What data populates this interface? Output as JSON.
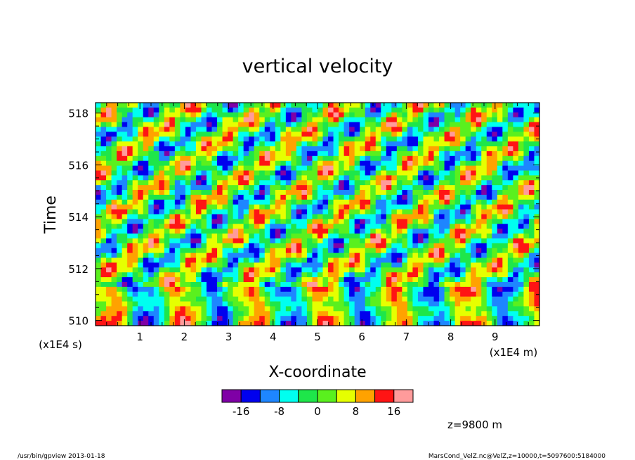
{
  "chart_data": {
    "type": "heatmap",
    "title": "vertical velocity",
    "xlabel": "X-coordinate",
    "ylabel": "Time",
    "x_unit": "(x1E4 m)",
    "y_unit": "(x1E4 s)",
    "xlim": [
      0,
      10
    ],
    "ylim": [
      509.8,
      518.4
    ],
    "x_ticks": [
      "1",
      "2",
      "3",
      "4",
      "5",
      "6",
      "7",
      "8",
      "9"
    ],
    "y_ticks": [
      "510",
      "512",
      "514",
      "516",
      "518"
    ],
    "colorbar": {
      "levels": [
        -20,
        -16,
        -12,
        -8,
        -4,
        0,
        4,
        8,
        12,
        16,
        20
      ],
      "tick_labels": [
        "-16",
        "-8",
        "0",
        "8",
        "16"
      ],
      "colors": [
        "#7f00a6",
        "#0000ee",
        "#1e86ff",
        "#00fff0",
        "#1ee64a",
        "#5af01e",
        "#e6ff00",
        "#ffa200",
        "#ff1414",
        "#ff9b9b"
      ]
    },
    "grid": false,
    "note_z": "z=9800 m"
  },
  "footer": {
    "left": "/usr/bin/gpview  2013-01-18",
    "right": "MarsCond_VelZ.nc@VelZ,z=10000,t=5097600:5184000"
  }
}
